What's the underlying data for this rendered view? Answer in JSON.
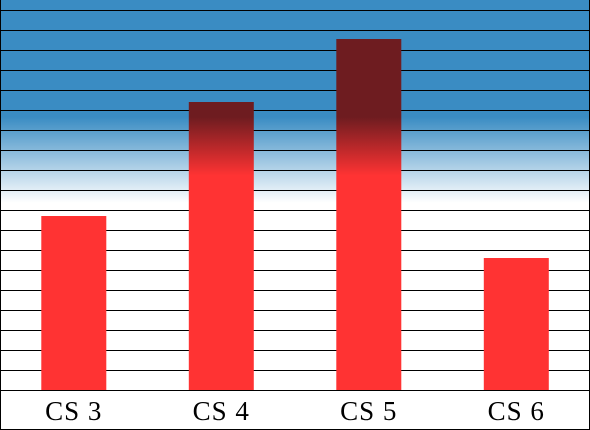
{
  "chart_data": {
    "type": "bar",
    "title": "",
    "xlabel": "",
    "ylabel": "",
    "categories": [
      "CS3",
      "CS4",
      "CS5",
      "CS6"
    ],
    "tick_labels": [
      "CS 3",
      "CS 4",
      "CS 5",
      "CS 6"
    ],
    "values": [
      8.7,
      14.4,
      17.55,
      6.6
    ],
    "ylim": [
      0,
      19.5
    ],
    "grid": true,
    "grid_step": 1,
    "legend": "none",
    "colors": {
      "bar": "#ff3333",
      "bar_shaded": "#6e1c20",
      "background_top": "#3a8cc3",
      "background_bottom": "#ffffff",
      "grid": "#000000"
    }
  }
}
